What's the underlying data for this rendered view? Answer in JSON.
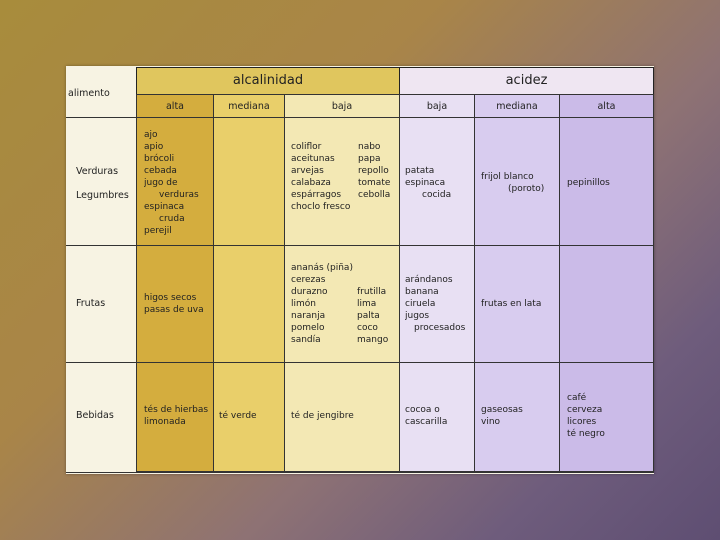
{
  "header": {
    "row_label": "alimento",
    "alkalinity": "alcalinidad",
    "acidity": "acidez"
  },
  "subheaders": {
    "alk_alta": "alta",
    "alk_mediana": "mediana",
    "alk_baja": "baja",
    "acid_baja": "baja",
    "acid_mediana": "mediana",
    "acid_alta": "alta"
  },
  "rows": {
    "verduras": {
      "label1": "Verduras",
      "label2": "Legumbres",
      "alk_alta": [
        "ajo",
        "apio",
        "brócoli",
        "cebada",
        "jugo de",
        "verduras",
        "espinaca",
        "cruda",
        "perejil"
      ],
      "alk_baja_left": [
        "coliflor",
        "aceitunas",
        "arvejas",
        "calabaza",
        "espárragos",
        "choclo fresco"
      ],
      "alk_baja_right": [
        "nabo",
        "papa",
        "repollo",
        "tomate",
        "cebolla"
      ],
      "acid_baja": [
        "patata",
        "espinaca",
        "cocida"
      ],
      "acid_mediana": [
        "frijol blanco",
        "(poroto)"
      ],
      "acid_alta": [
        "pepinillos"
      ]
    },
    "frutas": {
      "label": "Frutas",
      "alk_alta": [
        "higos secos",
        "pasas de uva"
      ],
      "alk_baja_top": [
        "ananás (piña)"
      ],
      "alk_baja_left": [
        "cerezas",
        "durazno",
        "limón",
        "naranja",
        "pomelo",
        "sandía"
      ],
      "alk_baja_right": [
        "frutilla",
        "lima",
        "palta",
        "coco",
        "mango"
      ],
      "acid_baja": [
        "arándanos",
        "banana",
        "ciruela",
        "jugos",
        "procesados"
      ],
      "acid_mediana": [
        "frutas en lata"
      ]
    },
    "bebidas": {
      "label": "Bebidas",
      "alk_alta": [
        "tés de hierbas",
        "limonada"
      ],
      "alk_mediana": [
        "té verde"
      ],
      "alk_baja": [
        "té de jengibre"
      ],
      "acid_baja": [
        "cocoa o",
        "cascarilla"
      ],
      "acid_mediana": [
        "gaseosas",
        "vino"
      ],
      "acid_alta": [
        "café",
        "cerveza",
        "licores",
        "té negro"
      ]
    }
  },
  "colors": {
    "alk_alta": "#d4ad3e",
    "alk_mediana": "#e9cf6a",
    "alk_baja": "#f3e8b4",
    "acid_baja": "#e8e0f3",
    "acid_mediana": "#d8ccef",
    "acid_alta": "#cbbbe8",
    "header_alk": "#e0c65e",
    "header_acid": "#efe6f2"
  }
}
